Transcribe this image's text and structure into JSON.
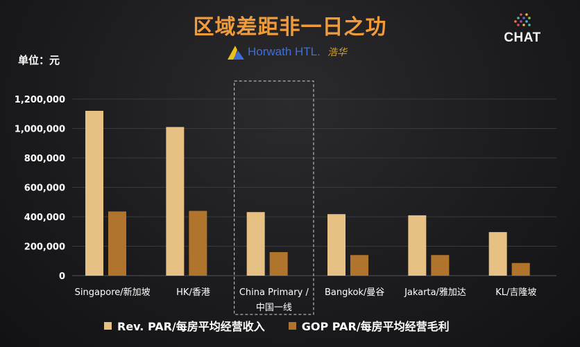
{
  "header": {
    "title": "区域差距非一日之功",
    "title_color": "#f29b3a",
    "brand_name": "Horwath HTL.",
    "brand_cn": "浩华",
    "logo_icon": "horwath-mountain-logo",
    "corner_logo": "CHAT"
  },
  "unit_label": "单位：元",
  "colors": {
    "rev_par": "#e7c083",
    "gop_par": "#b1742c",
    "highlight_border": "#d8d8d8",
    "gridline": "#3a3a3d",
    "axis_text": "#ffffff"
  },
  "legend": [
    {
      "label": "Rev. PAR/每房平均经营收入"
    },
    {
      "label": "GOP PAR/每房平均经营毛利"
    }
  ],
  "chart_data": {
    "type": "bar",
    "categories": [
      "Singapore/新加坡",
      "HK/香港",
      "China Primary /\n中国一线",
      "Bangkok/曼谷",
      "Jakarta/雅加达",
      "KL/吉隆坡"
    ],
    "series": [
      {
        "name": "Rev. PAR/每房平均经营收入",
        "values": [
          1120000,
          1010000,
          432000,
          418000,
          410000,
          296000
        ]
      },
      {
        "name": "GOP PAR/每房平均经营毛利",
        "values": [
          436000,
          440000,
          160000,
          140000,
          140000,
          86000
        ]
      }
    ],
    "y_ticks": [
      "0",
      "200,000",
      "400,000",
      "600,000",
      "800,000",
      "1,000,000",
      "1,200,000"
    ],
    "ylim": [
      0,
      1200000
    ],
    "highlight_category": "China Primary /\n中国一线",
    "legend_position": "bottom",
    "grid": true
  }
}
